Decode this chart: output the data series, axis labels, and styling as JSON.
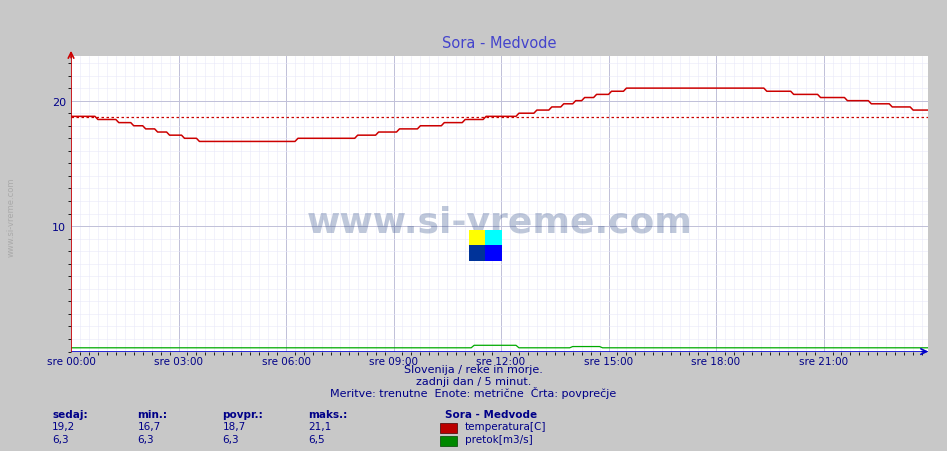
{
  "title": "Sora - Medvode",
  "title_color": "#4444cc",
  "bg_color": "#c8c8c8",
  "plot_bg_color": "#ffffff",
  "outer_bg_color": "#c8c8c8",
  "watermark_text": "www.si-vreme.com",
  "watermark_color": "#1a3a7a",
  "watermark_alpha": 0.28,
  "subtitle1": "Slovenija / reke in morje.",
  "subtitle2": "zadnji dan / 5 minut.",
  "subtitle3": "Meritve: trenutne  Enote: metrične  Črta: povprečje",
  "subtitle_color": "#000088",
  "legend_title": "Sora - Medvode",
  "legend_title_color": "#000088",
  "legend_color_temp": "#bb0000",
  "legend_color_flow": "#008800",
  "legend_label_temp": "temperatura[C]",
  "legend_label_flow": "pretok[m3/s]",
  "stat_labels": [
    "sedaj:",
    "min.:",
    "povpr.:",
    "maks.:"
  ],
  "stat_temp": [
    19.2,
    16.7,
    18.7,
    21.1
  ],
  "stat_flow": [
    6.3,
    6.3,
    6.3,
    6.5
  ],
  "stat_color": "#000088",
  "temp_avg": 18.7,
  "xlim": [
    0,
    287
  ],
  "ylim": [
    0,
    23.6
  ],
  "yticks": [
    10,
    20
  ],
  "xtick_positions": [
    0,
    36,
    72,
    108,
    144,
    180,
    216,
    252
  ],
  "xtick_labels": [
    "sre 00:00",
    "sre 03:00",
    "sre 06:00",
    "sre 09:00",
    "sre 12:00",
    "sre 15:00",
    "sre 18:00",
    "sre 21:00"
  ],
  "temp_line_color": "#cc0000",
  "temp_avg_color": "#cc0000",
  "flow_line_color": "#00aa00",
  "x_axis_color": "#0000cc",
  "y_axis_color": "#cc0000",
  "grid_minor_color": "#e8e8f8",
  "grid_major_color": "#c0c0d8",
  "left_text": "www.si-vreme.com",
  "left_text_color": "#aaaaaa"
}
